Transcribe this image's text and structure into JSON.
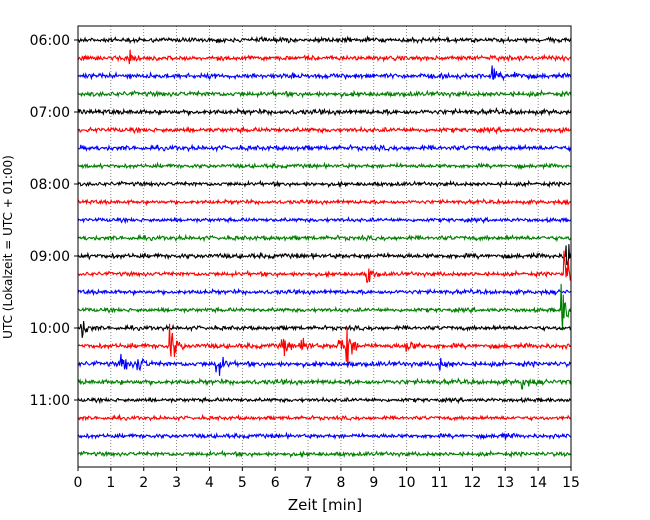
{
  "chart_data": {
    "type": "line",
    "title": "",
    "xlabel": "Zeit  [min]",
    "ylabel": "UTC (Lokalzeit = UTC + 01:00)",
    "xlim": [
      0,
      15
    ],
    "x_ticks": [
      0,
      1,
      2,
      3,
      4,
      5,
      6,
      7,
      8,
      9,
      10,
      11,
      12,
      13,
      14,
      15
    ],
    "y_tick_labels": [
      "06:00",
      "07:00",
      "08:00",
      "09:00",
      "10:00",
      "11:00"
    ],
    "y_tick_label_rows": [
      0,
      4,
      8,
      12,
      16,
      20
    ],
    "trace_interval_min": 15,
    "rows": 24,
    "color_cycle": [
      "#000000",
      "#ff0000",
      "#0000ff",
      "#008000"
    ],
    "vertical_grid": "dotted",
    "legend": "none",
    "events": [
      {
        "row": 1,
        "t": 1.5,
        "amp": 0.4
      },
      {
        "row": 2,
        "t": 12.6,
        "amp": 0.25
      },
      {
        "row": 2,
        "t": 13.3,
        "amp": 0.2
      },
      {
        "row": 12,
        "t": 14.85,
        "amp": 0.9
      },
      {
        "row": 13,
        "t": 8.8,
        "amp": 0.35
      },
      {
        "row": 13,
        "t": 14.8,
        "amp": 1.0
      },
      {
        "row": 15,
        "t": 14.7,
        "amp": 1.0
      },
      {
        "row": 16,
        "t": 0.1,
        "amp": 0.35
      },
      {
        "row": 17,
        "t": 2.8,
        "amp": 0.8
      },
      {
        "row": 17,
        "t": 6.2,
        "amp": 0.4
      },
      {
        "row": 17,
        "t": 6.8,
        "amp": 0.35
      },
      {
        "row": 17,
        "t": 7.9,
        "amp": 0.45
      },
      {
        "row": 17,
        "t": 8.15,
        "amp": 0.9
      },
      {
        "row": 17,
        "t": 10.0,
        "amp": 0.3
      },
      {
        "row": 18,
        "t": 1.3,
        "amp": 0.4
      },
      {
        "row": 18,
        "t": 1.8,
        "amp": 0.4
      },
      {
        "row": 18,
        "t": 4.2,
        "amp": 0.6
      },
      {
        "row": 18,
        "t": 11.0,
        "amp": 0.2
      },
      {
        "row": 19,
        "t": 13.5,
        "amp": 0.25
      },
      {
        "row": 22,
        "t": 12.8,
        "amp": 0.2
      }
    ]
  }
}
